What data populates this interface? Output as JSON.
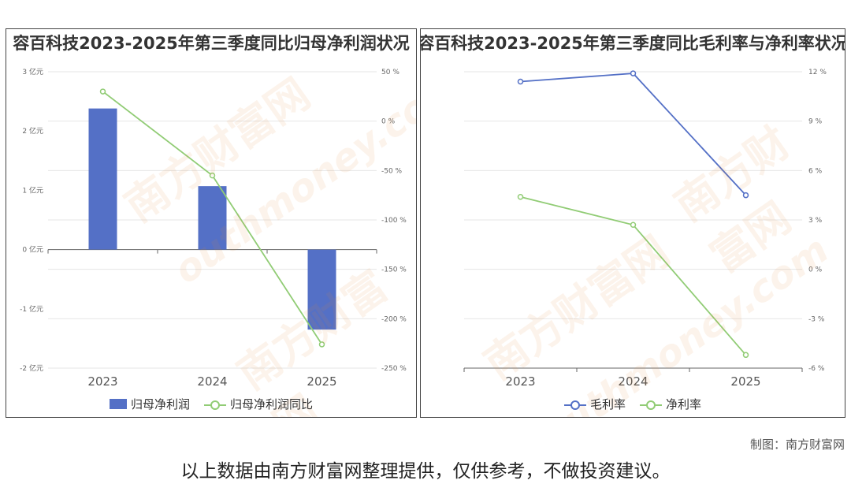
{
  "chart_data": [
    {
      "type": "bar",
      "title": "容百科技2023-2025年第三季度同比归母净利润状况",
      "categories": [
        "2023",
        "2024",
        "2025"
      ],
      "series": [
        {
          "name": "归母净利润",
          "kind": "bar",
          "axis": "left",
          "values": [
            2.38,
            1.07,
            -1.35
          ],
          "color": "#5470c6"
        },
        {
          "name": "归母净利润同比",
          "kind": "line",
          "axis": "right",
          "values": [
            30,
            -55,
            -226
          ],
          "color": "#91cc75"
        }
      ],
      "ylim_left": [
        -2,
        3
      ],
      "ylim_right": [
        -250,
        50
      ],
      "yticks_left": [
        "3 亿元",
        "2 亿元",
        "1 亿元",
        "0 亿元",
        "-1 亿元",
        "-2 亿元"
      ],
      "yticks_right": [
        "50 %",
        "0 %",
        "-50 %",
        "-100 %",
        "-150 %",
        "-200 %",
        "-250 %"
      ],
      "grid": true,
      "legend": "bottom"
    },
    {
      "type": "line",
      "title": "容百科技2023-2025年第三季度同比毛利率与净利率状况",
      "categories": [
        "2023",
        "2024",
        "2025"
      ],
      "series": [
        {
          "name": "毛利率",
          "values": [
            11.4,
            11.9,
            4.5
          ],
          "color": "#5470c6"
        },
        {
          "name": "净利率",
          "values": [
            4.4,
            2.7,
            -5.2
          ],
          "color": "#91cc75"
        }
      ],
      "ylim": [
        -6,
        12
      ],
      "yticks": [
        "12 %",
        "9 %",
        "6 %",
        "3 %",
        "0 %",
        "-3 %",
        "-6 %"
      ],
      "grid": true,
      "legend": "bottom"
    }
  ],
  "watermark": {
    "text_cn": "南方财富网",
    "text_en": "outhmoney.com"
  },
  "footer": {
    "credit": "制图：南方财富网",
    "disclaimer": "以上数据由南方财富网整理提供，仅供参考，不做投资建议。"
  }
}
